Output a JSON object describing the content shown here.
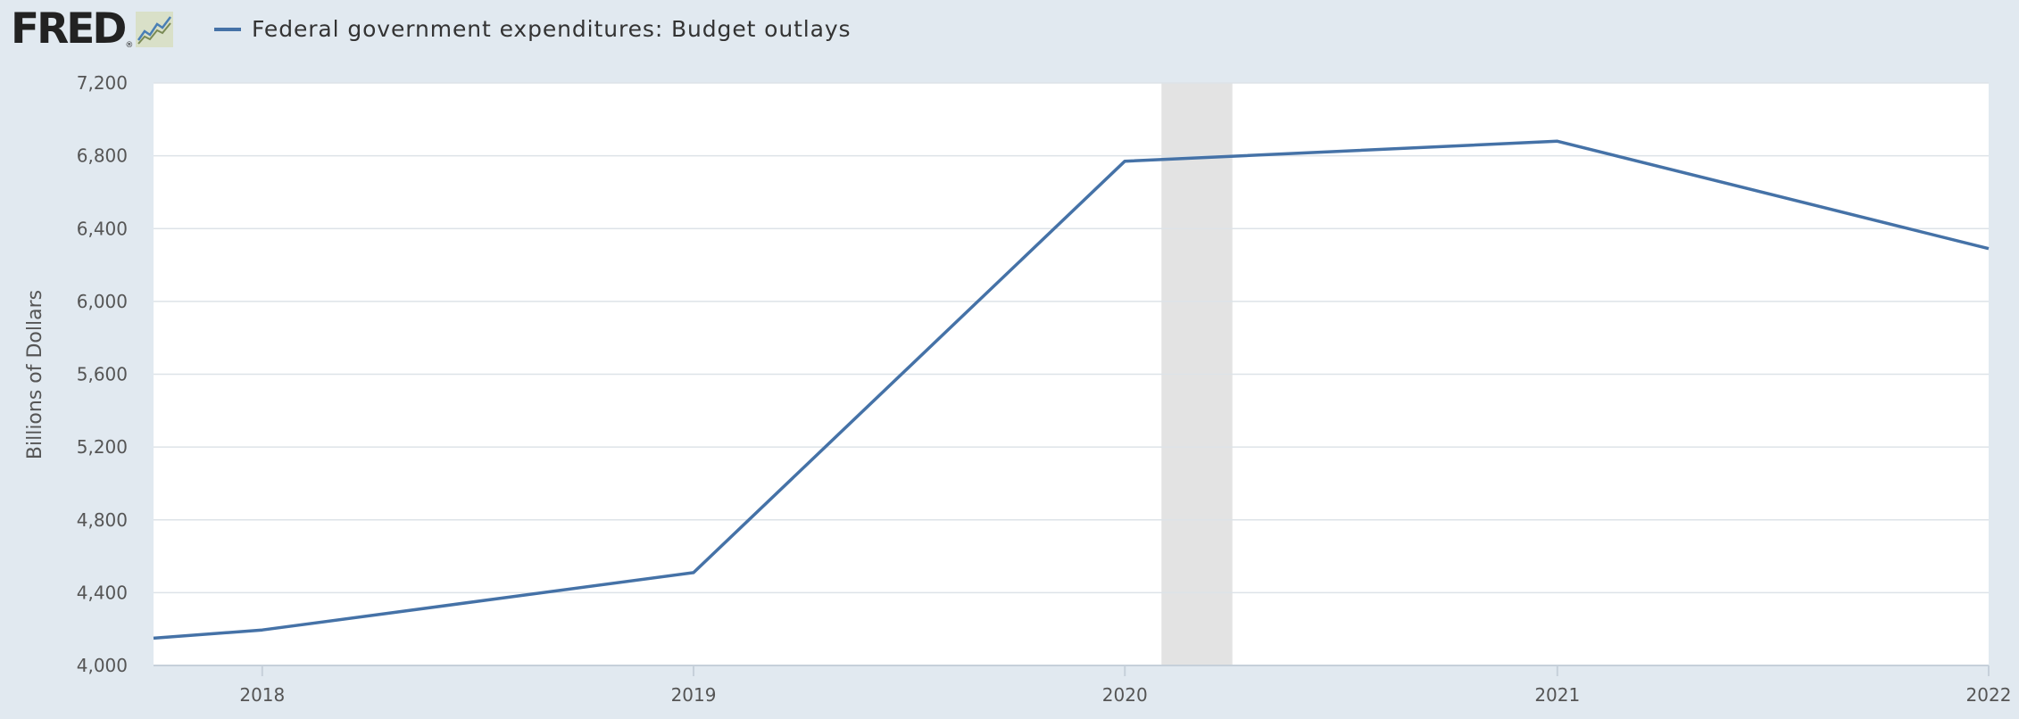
{
  "header": {
    "logo_text": "FRED",
    "logo_mark": "®",
    "logo_icon": "line-graph-icon"
  },
  "legend": {
    "label": "Federal government expenditures: Budget outlays",
    "color": "#4572a7"
  },
  "colors": {
    "background": "#e1e9f0",
    "plot_background": "#ffffff",
    "line": "#4572a7",
    "gridline": "#dde3e8",
    "recession": "#e3e3e3"
  },
  "chart_data": {
    "type": "line",
    "title": "",
    "xlabel": "",
    "ylabel": "Billions of Dollars",
    "ylim": [
      4000,
      7200
    ],
    "xlim": [
      "2017-10-01",
      "2022-01-01"
    ],
    "y_ticks": [
      4000,
      4400,
      4800,
      5200,
      5600,
      6000,
      6400,
      6800,
      7200
    ],
    "y_tick_labels": [
      "4,000",
      "4,400",
      "4,800",
      "5,200",
      "5,600",
      "6,000",
      "6,400",
      "6,800",
      "7,200"
    ],
    "x_ticks": [
      "2018-01-01",
      "2019-01-01",
      "2020-01-01",
      "2021-01-01",
      "2022-01-01"
    ],
    "x_tick_labels": [
      "2018",
      "2019",
      "2020",
      "2021",
      "2022"
    ],
    "grid": true,
    "legend_position": "top-left",
    "recession_shading": [
      {
        "start": "2020-02-01",
        "end": "2020-04-01"
      }
    ],
    "series": [
      {
        "name": "Federal government expenditures: Budget outlays",
        "x": [
          "2017-10-01",
          "2018-01-01",
          "2019-01-01",
          "2020-01-01",
          "2021-01-01",
          "2022-01-01"
        ],
        "values": [
          4150,
          4195,
          4510,
          6770,
          6880,
          6290
        ]
      }
    ]
  }
}
